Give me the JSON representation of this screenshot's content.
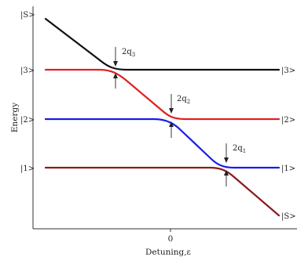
{
  "axes": {
    "xlabel": "Detuning,ε",
    "ylabel": "Energy",
    "x_tick": "0"
  },
  "state_labels": {
    "left_S": "|S>",
    "left_3": "|3>",
    "left_2": "|2>",
    "left_1": "|1>",
    "right_3": "|3>",
    "right_2": "|2>",
    "right_1": "|1>",
    "right_S": "|S>"
  },
  "gaps": {
    "q3": {
      "base": "2q",
      "sub": "3"
    },
    "q2": {
      "base": "2q",
      "sub": "2"
    },
    "q1": {
      "base": "2q",
      "sub": "1"
    }
  },
  "colors": {
    "S_curve": "#111111",
    "level3": "#e02020",
    "level2": "#1a1aee",
    "level1": "#8b1a1a"
  }
}
